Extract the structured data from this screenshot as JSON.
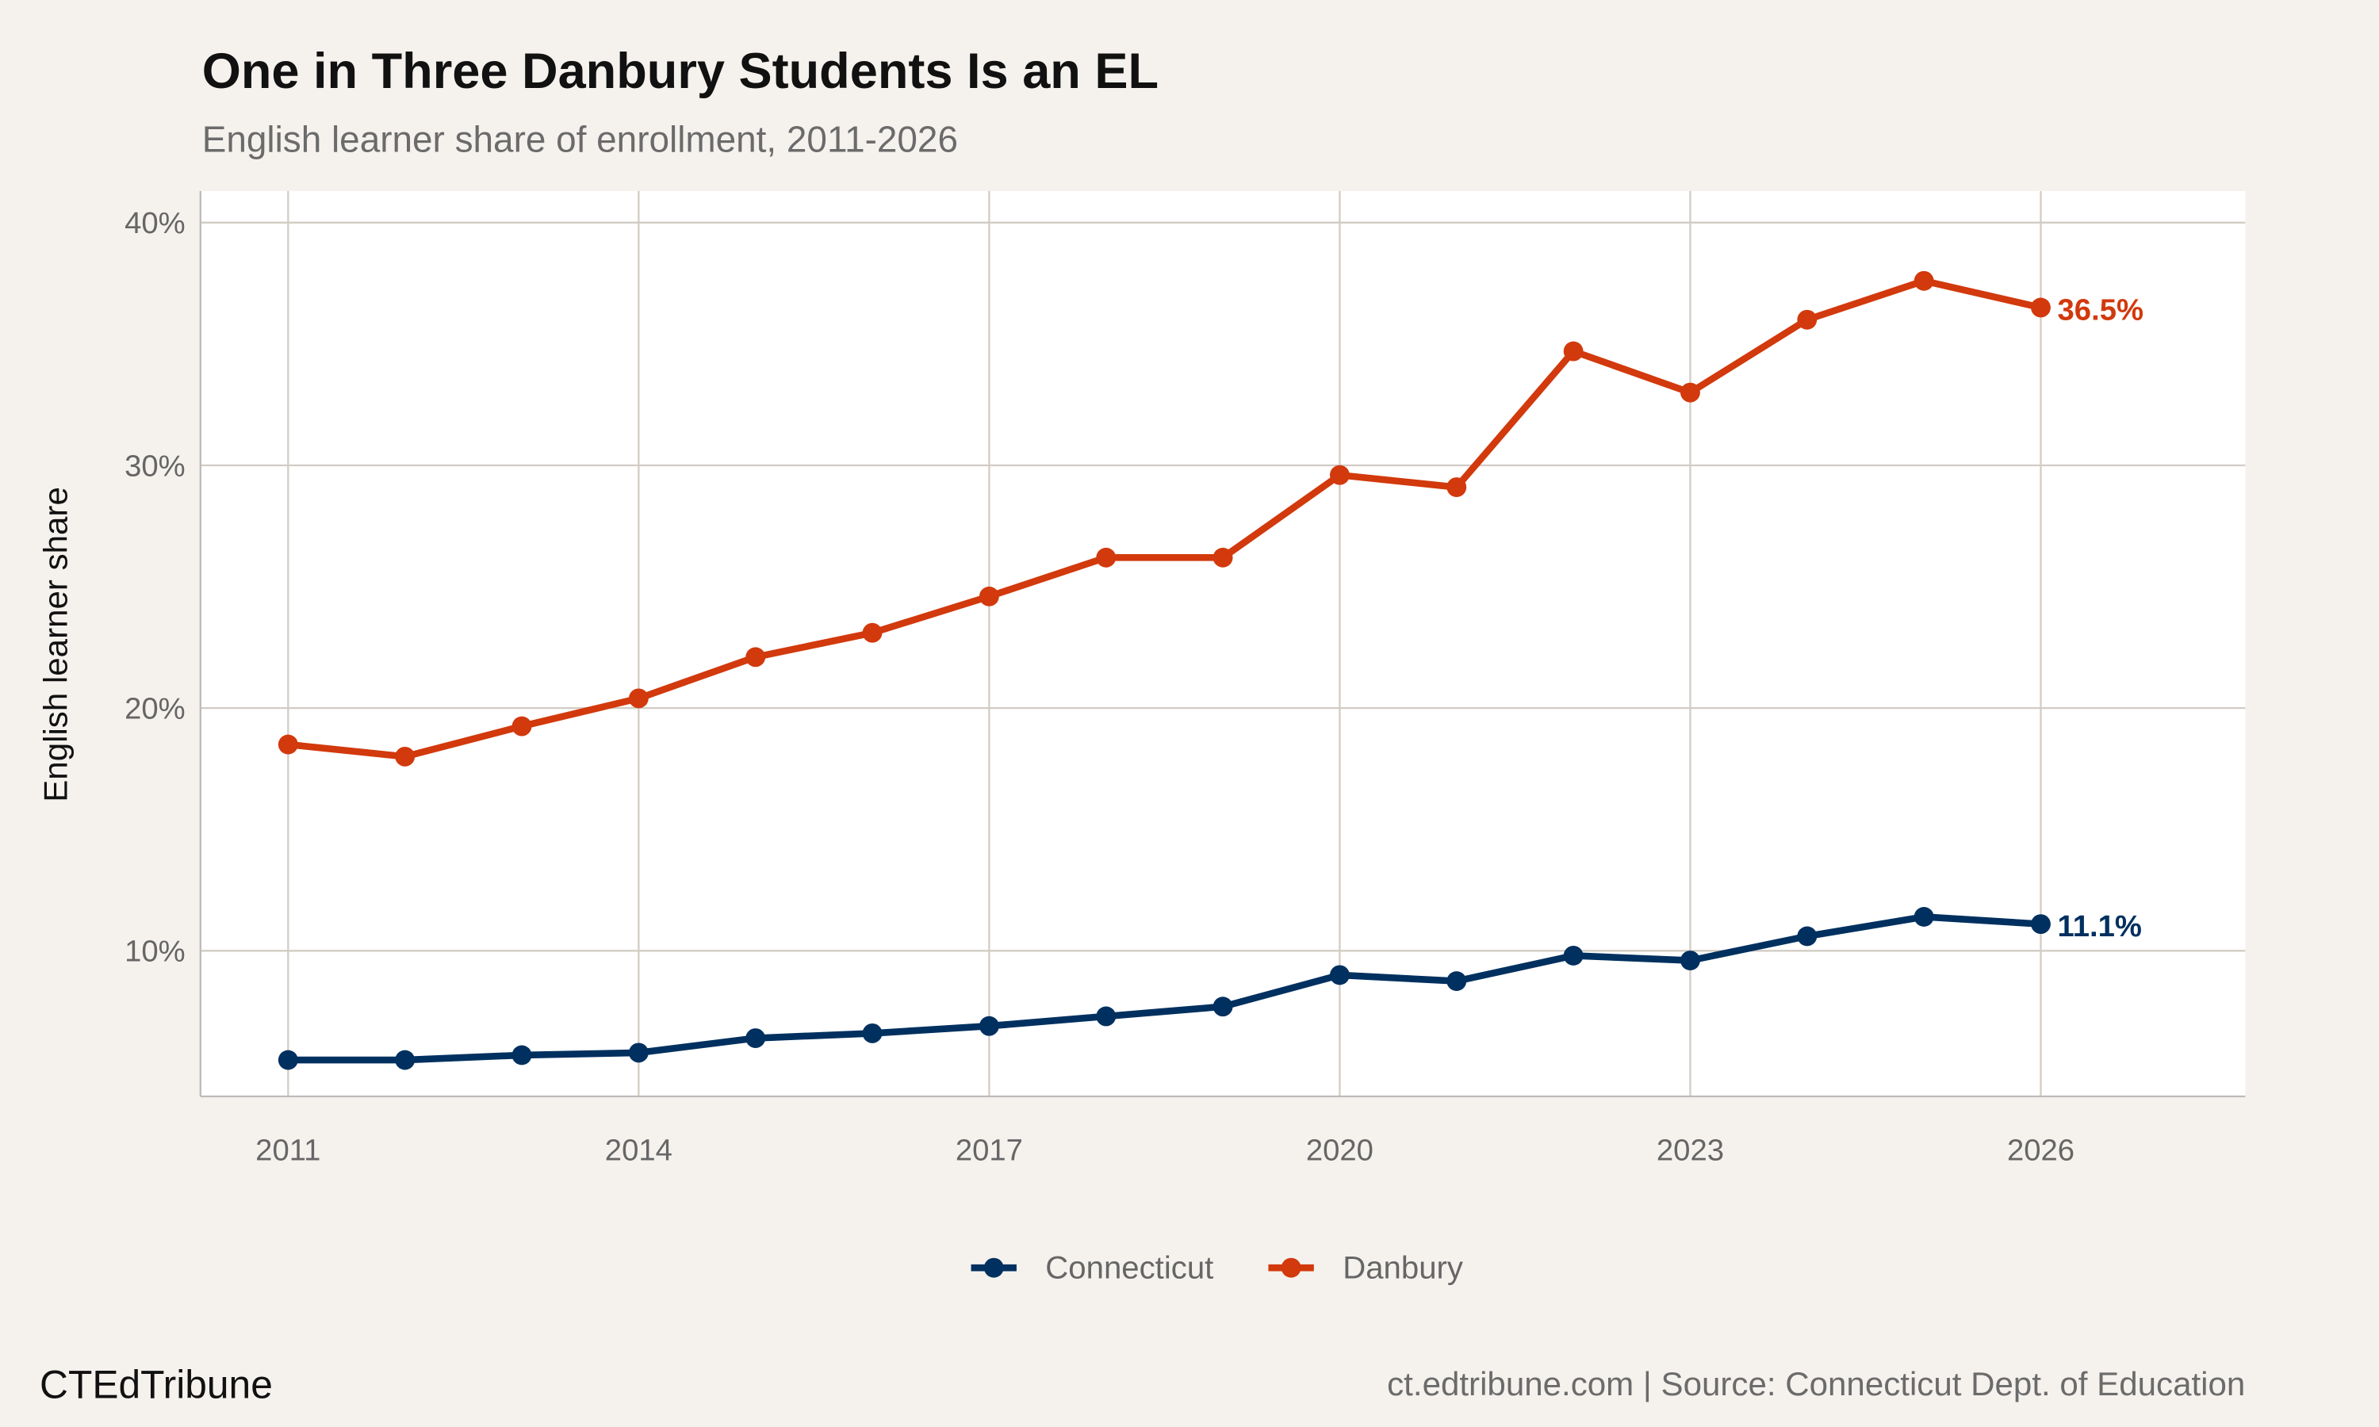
{
  "chart_data": {
    "type": "line",
    "title": "One in Three Danbury Students Is an EL",
    "subtitle": "English learner share of enrollment, 2011-2026",
    "xlabel": "",
    "ylabel": "English learner share",
    "x": [
      2011,
      2012,
      2013,
      2014,
      2015,
      2016,
      2017,
      2018,
      2019,
      2020,
      2021,
      2022,
      2023,
      2024,
      2025,
      2026
    ],
    "xlim": [
      2010.25,
      2027.75
    ],
    "ylim": [
      4,
      41.3
    ],
    "x_ticks": [
      2011,
      2014,
      2017,
      2020,
      2023,
      2026
    ],
    "x_tick_labels": [
      "2011",
      "2014",
      "2017",
      "2020",
      "2023",
      "2026"
    ],
    "y_ticks": [
      10,
      20,
      30,
      40
    ],
    "y_tick_labels": [
      "10%",
      "20%",
      "30%",
      "40%"
    ],
    "grid": true,
    "legend_position": "bottom",
    "series": [
      {
        "name": "Connecticut",
        "color": "#00305f",
        "values": [
          5.5,
          5.5,
          5.7,
          5.8,
          6.4,
          6.6,
          6.9,
          7.3,
          7.7,
          9.0,
          8.75,
          9.8,
          9.6,
          10.6,
          11.4,
          11.1
        ],
        "end_label": "11.1%"
      },
      {
        "name": "Danbury",
        "color": "#d2390c",
        "values": [
          18.5,
          18.0,
          19.25,
          20.4,
          22.1,
          23.1,
          24.6,
          26.2,
          26.2,
          29.6,
          29.1,
          34.7,
          33.0,
          36.0,
          37.6,
          36.5
        ],
        "end_label": "36.5%"
      }
    ]
  },
  "caption_left": "CTEdTribune",
  "caption_right": "ct.edtribune.com | Source: Connecticut Dept. of Education"
}
